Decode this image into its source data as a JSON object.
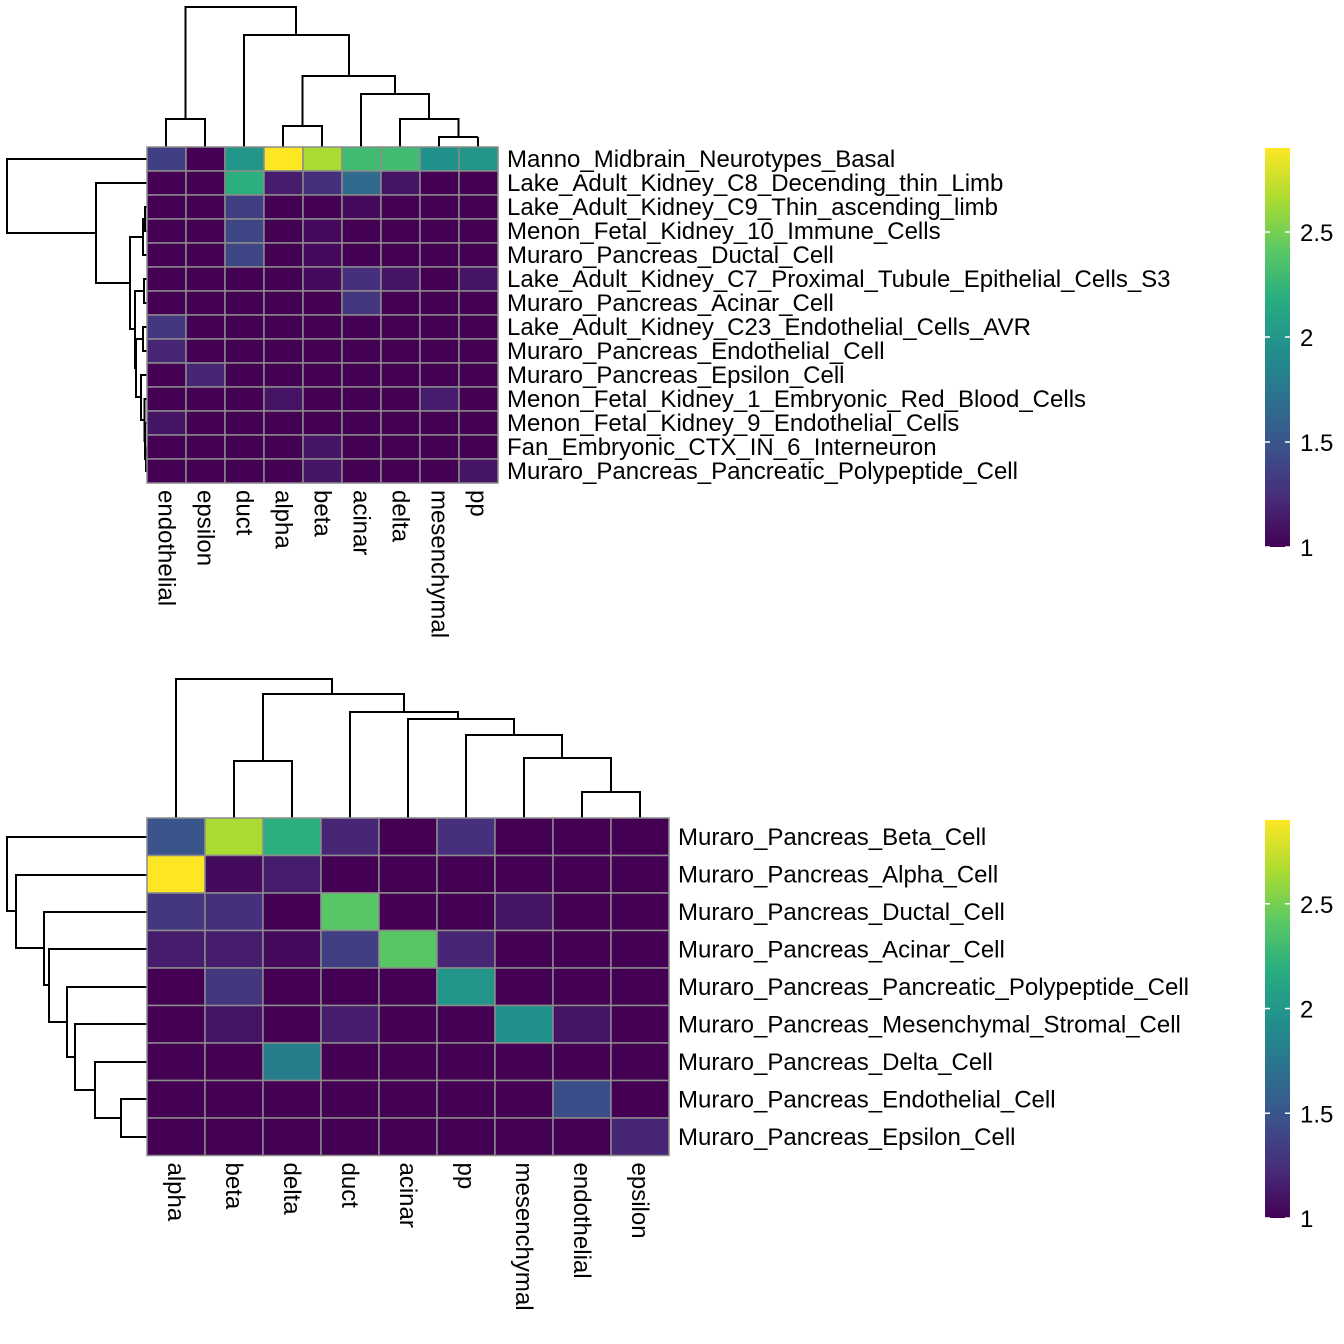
{
  "chart_data": [
    {
      "type": "heatmap",
      "rows": [
        "Manno_Midbrain_Neurotypes_Basal",
        "Lake_Adult_Kidney_C8_Decending_thin_Limb",
        "Lake_Adult_Kidney_C9_Thin_ascending_limb",
        "Menon_Fetal_Kidney_10_Immune_Cells",
        "Muraro_Pancreas_Ductal_Cell",
        "Lake_Adult_Kidney_C7_Proximal_Tubule_Epithelial_Cells_S3",
        "Muraro_Pancreas_Acinar_Cell",
        "Lake_Adult_Kidney_C23_Endothelial_Cells_AVR",
        "Muraro_Pancreas_Endothelial_Cell",
        "Muraro_Pancreas_Epsilon_Cell",
        "Menon_Fetal_Kidney_1_Embryonic_Red_Blood_Cells",
        "Menon_Fetal_Kidney_9_Endothelial_Cells",
        "Fan_Embryonic_CTX_IN_6_Interneuron",
        "Muraro_Pancreas_Pancreatic_Polypeptide_Cell"
      ],
      "columns": [
        "endothelial",
        "epsilon",
        "duct",
        "alpha",
        "beta",
        "acinar",
        "delta",
        "mesenchymal",
        "pp"
      ],
      "values": [
        [
          1.35,
          1.0,
          2.0,
          2.9,
          2.65,
          2.3,
          2.3,
          1.95,
          2.0
        ],
        [
          1.0,
          1.0,
          2.2,
          1.15,
          1.25,
          1.65,
          1.1,
          1.0,
          1.0
        ],
        [
          1.0,
          1.0,
          1.35,
          1.0,
          1.0,
          1.05,
          1.0,
          1.0,
          1.0
        ],
        [
          1.0,
          1.0,
          1.4,
          1.0,
          1.05,
          1.0,
          1.0,
          1.0,
          1.0
        ],
        [
          1.0,
          1.0,
          1.4,
          1.0,
          1.05,
          1.0,
          1.0,
          1.0,
          1.0
        ],
        [
          1.0,
          1.0,
          1.0,
          1.0,
          1.05,
          1.25,
          1.1,
          1.0,
          1.1
        ],
        [
          1.0,
          1.0,
          1.0,
          1.0,
          1.0,
          1.3,
          1.0,
          1.0,
          1.0
        ],
        [
          1.3,
          1.0,
          1.0,
          1.0,
          1.0,
          1.0,
          1.0,
          1.0,
          1.0
        ],
        [
          1.2,
          1.0,
          1.0,
          1.0,
          1.0,
          1.0,
          1.0,
          1.0,
          1.0
        ],
        [
          1.0,
          1.2,
          1.0,
          1.0,
          1.0,
          1.0,
          1.0,
          1.0,
          1.0
        ],
        [
          1.0,
          1.0,
          1.0,
          1.1,
          1.0,
          1.0,
          1.0,
          1.15,
          1.0
        ],
        [
          1.1,
          1.0,
          1.0,
          1.0,
          1.0,
          1.0,
          1.0,
          1.0,
          1.0
        ],
        [
          1.0,
          1.0,
          1.0,
          1.0,
          1.1,
          1.0,
          1.0,
          1.0,
          1.0
        ],
        [
          1.0,
          1.0,
          1.0,
          1.0,
          1.1,
          1.0,
          1.0,
          1.0,
          1.1
        ]
      ],
      "colorscale": "viridis",
      "color_range": [
        1,
        2.9
      ],
      "colorbar_ticks": [
        "1",
        "1.5",
        "2",
        "2.5"
      ],
      "dendrograms": {
        "rows": true,
        "columns": true
      }
    },
    {
      "type": "heatmap",
      "rows": [
        "Muraro_Pancreas_Beta_Cell",
        "Muraro_Pancreas_Alpha_Cell",
        "Muraro_Pancreas_Ductal_Cell",
        "Muraro_Pancreas_Acinar_Cell",
        "Muraro_Pancreas_Pancreatic_Polypeptide_Cell",
        "Muraro_Pancreas_Mesenchymal_Stromal_Cell",
        "Muraro_Pancreas_Delta_Cell",
        "Muraro_Pancreas_Endothelial_Cell",
        "Muraro_Pancreas_Epsilon_Cell"
      ],
      "columns": [
        "alpha",
        "beta",
        "delta",
        "duct",
        "acinar",
        "pp",
        "mesenchymal",
        "endothelial",
        "epsilon"
      ],
      "values": [
        [
          1.5,
          2.65,
          2.2,
          1.2,
          1.0,
          1.25,
          1.0,
          1.0,
          1.0
        ],
        [
          2.9,
          1.05,
          1.15,
          1.0,
          1.0,
          1.0,
          1.0,
          1.0,
          1.0
        ],
        [
          1.3,
          1.25,
          1.0,
          2.4,
          1.0,
          1.0,
          1.1,
          1.0,
          1.0
        ],
        [
          1.15,
          1.15,
          1.05,
          1.35,
          2.4,
          1.2,
          1.0,
          1.0,
          1.0
        ],
        [
          1.0,
          1.3,
          1.0,
          1.0,
          1.0,
          2.0,
          1.0,
          1.0,
          1.0
        ],
        [
          1.0,
          1.1,
          1.0,
          1.15,
          1.0,
          1.0,
          1.95,
          1.1,
          1.0
        ],
        [
          1.0,
          1.0,
          1.8,
          1.0,
          1.0,
          1.0,
          1.0,
          1.0,
          1.0
        ],
        [
          1.0,
          1.0,
          1.0,
          1.0,
          1.0,
          1.0,
          1.0,
          1.45,
          1.0
        ],
        [
          1.0,
          1.0,
          1.0,
          1.0,
          1.0,
          1.0,
          1.0,
          1.0,
          1.2
        ]
      ],
      "colorscale": "viridis",
      "color_range": [
        1,
        2.9
      ],
      "colorbar_ticks": [
        "1",
        "1.5",
        "2",
        "2.5"
      ],
      "dendrograms": {
        "rows": true,
        "columns": true
      }
    }
  ]
}
